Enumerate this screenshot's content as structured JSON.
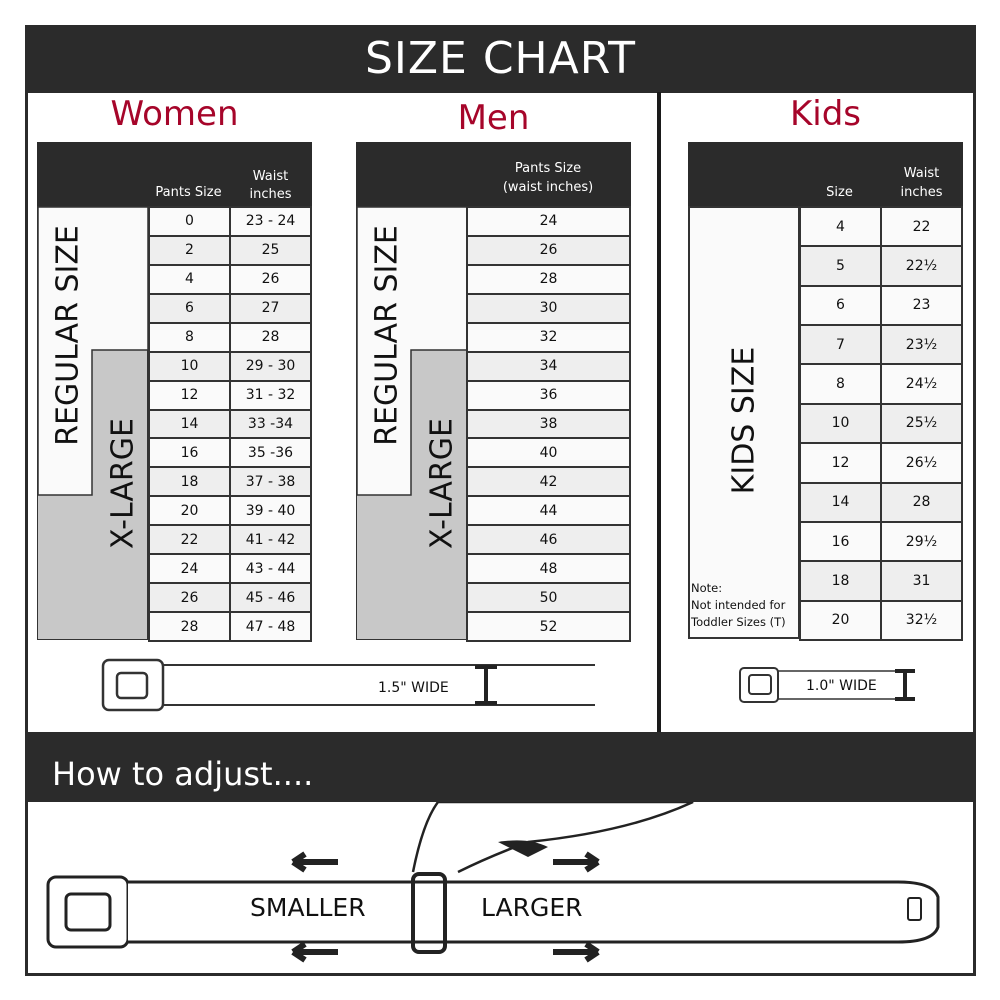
{
  "title": "SIZE CHART",
  "accent_color": "#a6052a",
  "women": {
    "heading": "Women",
    "col1": "Pants Size",
    "col2_line1": "Waist",
    "col2_line2": "inches",
    "regular_label": "REGULAR SIZE",
    "xlarge_label": "X-LARGE",
    "rows": [
      [
        "0",
        "23 - 24"
      ],
      [
        "2",
        "25"
      ],
      [
        "4",
        "26"
      ],
      [
        "6",
        "27"
      ],
      [
        "8",
        "28"
      ],
      [
        "10",
        "29 - 30"
      ],
      [
        "12",
        "31 - 32"
      ],
      [
        "14",
        "33 -34"
      ],
      [
        "16",
        "35 -36"
      ],
      [
        "18",
        "37 - 38"
      ],
      [
        "20",
        "39 - 40"
      ],
      [
        "22",
        "41 - 42"
      ],
      [
        "24",
        "43 - 44"
      ],
      [
        "26",
        "45 - 46"
      ],
      [
        "28",
        "47 - 48"
      ]
    ],
    "width_label": "1.5\" WIDE"
  },
  "men": {
    "heading": "Men",
    "col1_line1": "Pants Size",
    "col1_line2": "(waist inches)",
    "regular_label": "REGULAR SIZE",
    "xlarge_label": "X-LARGE",
    "rows": [
      "24",
      "26",
      "28",
      "30",
      "32",
      "34",
      "36",
      "38",
      "40",
      "42",
      "44",
      "46",
      "48",
      "50",
      "52"
    ]
  },
  "kids": {
    "heading": "Kids",
    "col1": "Size",
    "col2_line1": "Waist",
    "col2_line2": "inches",
    "size_label": "KIDS SIZE",
    "rows": [
      [
        "4",
        "22"
      ],
      [
        "5",
        "22½"
      ],
      [
        "6",
        "23"
      ],
      [
        "7",
        "23½"
      ],
      [
        "8",
        "24½"
      ],
      [
        "10",
        "25½"
      ],
      [
        "12",
        "26½"
      ],
      [
        "14",
        "28"
      ],
      [
        "16",
        "29½"
      ],
      [
        "18",
        "31"
      ],
      [
        "20",
        "32½"
      ]
    ],
    "note_line1": "Note:",
    "note_line2": "Not intended for",
    "note_line3": "Toddler Sizes (T)",
    "width_label": "1.0\" WIDE"
  },
  "adjust": {
    "heading": "How to adjust....",
    "smaller": "SMALLER",
    "larger": "LARGER"
  }
}
